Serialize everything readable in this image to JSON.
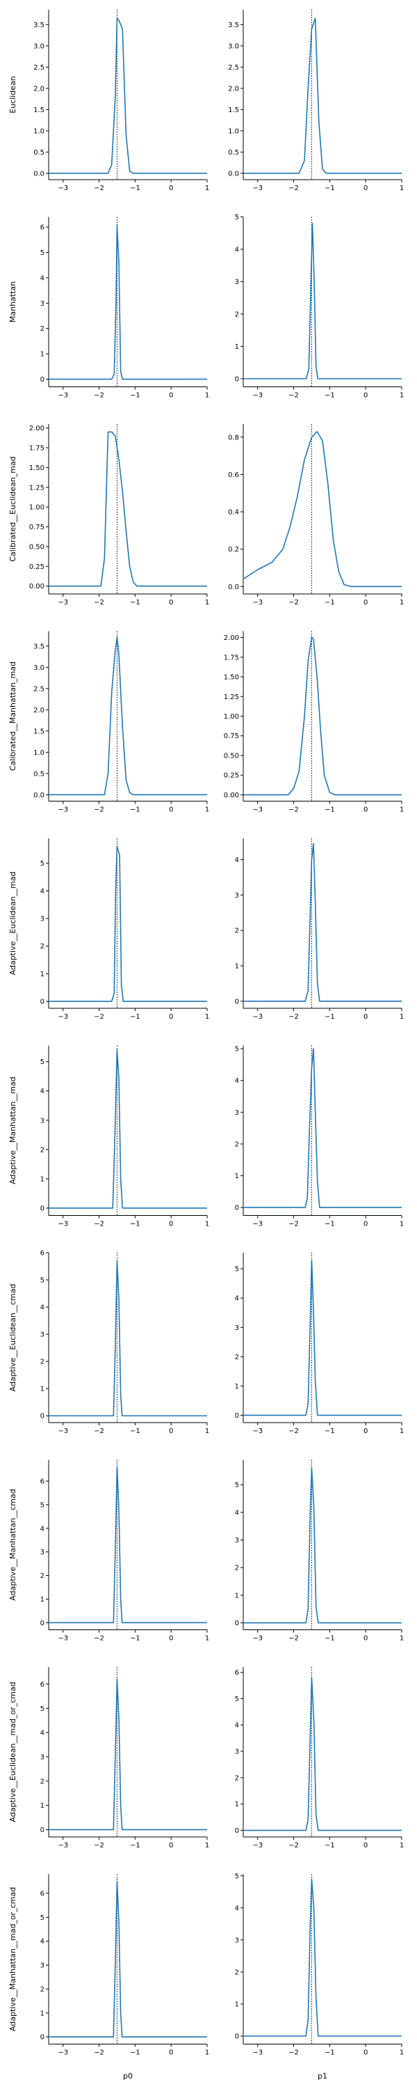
{
  "chart_data": {
    "type": "line",
    "x_ticks": [
      -3,
      -2,
      -1,
      0,
      1
    ],
    "xlim": [
      -3.4,
      1.0
    ],
    "reference_x": -1.5,
    "line_color": "#1f77b4",
    "columns": [
      "p0",
      "p1"
    ],
    "spines": "left-bottom",
    "grid": false,
    "legend": "none",
    "panels": [
      {
        "row_label": "Euclidean",
        "plots": [
          {
            "ylim": [
              -0.15,
              3.85
            ],
            "yticks": [
              "0.0",
              "0.5",
              "1.0",
              "1.5",
              "2.0",
              "2.5",
              "3.0",
              "3.5"
            ],
            "x": [
              -3.4,
              -1.75,
              -1.65,
              -1.55,
              -1.5,
              -1.45,
              -1.35,
              -1.25,
              -1.15,
              -1.05,
              1.0
            ],
            "y": [
              0,
              0,
              0.2,
              1.8,
              3.65,
              3.6,
              3.4,
              0.9,
              0.05,
              0,
              0
            ]
          },
          {
            "ylim": [
              -0.15,
              3.85
            ],
            "yticks": [
              "0.0",
              "0.5",
              "1.0",
              "1.5",
              "2.0",
              "2.5",
              "3.0",
              "3.5"
            ],
            "x": [
              -3.4,
              -1.85,
              -1.7,
              -1.6,
              -1.5,
              -1.4,
              -1.3,
              -1.2,
              -1.1,
              1.0
            ],
            "y": [
              0,
              0,
              0.3,
              2.0,
              3.4,
              3.65,
              1.2,
              0.1,
              0,
              0
            ]
          }
        ]
      },
      {
        "row_label": "Manhattan",
        "plots": [
          {
            "ylim": [
              -0.3,
              6.4
            ],
            "yticks": [
              "0",
              "1",
              "2",
              "3",
              "4",
              "5",
              "6"
            ],
            "x": [
              -3.4,
              -1.65,
              -1.58,
              -1.53,
              -1.5,
              -1.45,
              -1.4,
              -1.35,
              1.0
            ],
            "y": [
              0,
              0,
              0.2,
              3.0,
              6.05,
              4.6,
              0.3,
              0,
              0
            ]
          },
          {
            "ylim": [
              -0.25,
              5.0
            ],
            "yticks": [
              "0",
              "1",
              "2",
              "3",
              "4",
              "5"
            ],
            "x": [
              -3.4,
              -1.65,
              -1.58,
              -1.52,
              -1.48,
              -1.43,
              -1.38,
              -1.33,
              1.0
            ],
            "y": [
              0,
              0,
              0.3,
              3.0,
              4.8,
              3.0,
              0.4,
              0,
              0
            ]
          }
        ]
      },
      {
        "row_label": "Calibrated__Euclidean_mad",
        "plots": [
          {
            "ylim": [
              -0.1,
              2.05
            ],
            "yticks": [
              "0.00",
              "0.25",
              "0.50",
              "0.75",
              "1.00",
              "1.25",
              "1.50",
              "1.75",
              "2.00"
            ],
            "x": [
              -3.4,
              -1.95,
              -1.85,
              -1.75,
              -1.65,
              -1.55,
              -1.45,
              -1.35,
              -1.25,
              -1.15,
              -1.05,
              -0.95,
              1.0
            ],
            "y": [
              0,
              0,
              0.35,
              1.95,
              1.95,
              1.9,
              1.6,
              1.2,
              0.7,
              0.25,
              0.05,
              0,
              0
            ]
          },
          {
            "ylim": [
              -0.04,
              0.87
            ],
            "yticks": [
              "0.0",
              "0.2",
              "0.4",
              "0.6",
              "0.8"
            ],
            "x": [
              -3.4,
              -3.0,
              -2.6,
              -2.3,
              -2.1,
              -1.9,
              -1.7,
              -1.5,
              -1.35,
              -1.2,
              -1.05,
              -0.9,
              -0.75,
              -0.6,
              -0.4,
              1.0
            ],
            "y": [
              0.04,
              0.09,
              0.13,
              0.2,
              0.32,
              0.48,
              0.68,
              0.8,
              0.83,
              0.78,
              0.55,
              0.25,
              0.08,
              0.01,
              0,
              0
            ]
          }
        ]
      },
      {
        "row_label": "Calibrated__Manhattan_mad",
        "plots": [
          {
            "ylim": [
              -0.15,
              3.85
            ],
            "yticks": [
              "0.0",
              "0.5",
              "1.0",
              "1.5",
              "2.0",
              "2.5",
              "3.0",
              "3.5"
            ],
            "x": [
              -3.4,
              -1.85,
              -1.75,
              -1.65,
              -1.55,
              -1.5,
              -1.45,
              -1.35,
              -1.25,
              -1.15,
              -1.05,
              1.0
            ],
            "y": [
              0,
              0,
              0.5,
              2.4,
              3.4,
              3.7,
              3.3,
              1.6,
              0.35,
              0.05,
              0,
              0
            ]
          },
          {
            "ylim": [
              -0.08,
              2.08
            ],
            "yticks": [
              "0.00",
              "0.25",
              "0.50",
              "0.75",
              "1.00",
              "1.25",
              "1.50",
              "1.75",
              "2.00"
            ],
            "x": [
              -3.4,
              -2.15,
              -2.0,
              -1.85,
              -1.7,
              -1.6,
              -1.5,
              -1.45,
              -1.35,
              -1.25,
              -1.15,
              -1.0,
              -0.85,
              1.0
            ],
            "y": [
              0,
              0,
              0.08,
              0.3,
              1.0,
              1.7,
              2.0,
              1.98,
              1.5,
              0.8,
              0.25,
              0.03,
              0,
              0
            ]
          }
        ]
      },
      {
        "row_label": "Adaptive__Euclidean__mad",
        "plots": [
          {
            "ylim": [
              -0.25,
              5.9
            ],
            "yticks": [
              "0",
              "1",
              "2",
              "3",
              "4",
              "5"
            ],
            "x": [
              -3.4,
              -1.65,
              -1.58,
              -1.54,
              -1.5,
              -1.43,
              -1.38,
              -1.33,
              1.0
            ],
            "y": [
              0,
              0,
              0.3,
              4.0,
              5.6,
              5.3,
              0.6,
              0,
              0
            ]
          },
          {
            "ylim": [
              -0.2,
              4.6
            ],
            "yticks": [
              "0",
              "1",
              "2",
              "3",
              "4"
            ],
            "x": [
              -3.4,
              -1.68,
              -1.6,
              -1.54,
              -1.5,
              -1.45,
              -1.4,
              -1.34,
              -1.28,
              1.0
            ],
            "y": [
              0,
              0,
              0.3,
              2.5,
              4.0,
              4.45,
              2.8,
              0.5,
              0,
              0
            ]
          }
        ]
      },
      {
        "row_label": "Adaptive__Manhattan__mad",
        "plots": [
          {
            "ylim": [
              -0.25,
              5.55
            ],
            "yticks": [
              "0",
              "1",
              "2",
              "3",
              "4",
              "5"
            ],
            "x": [
              -3.4,
              -1.62,
              -1.56,
              -1.5,
              -1.45,
              -1.4,
              -1.35,
              1.0
            ],
            "y": [
              0,
              0,
              2.5,
              5.4,
              4.4,
              1.0,
              0,
              0
            ]
          },
          {
            "ylim": [
              -0.25,
              5.1
            ],
            "yticks": [
              "0",
              "1",
              "2",
              "3",
              "4",
              "5"
            ],
            "x": [
              -3.4,
              -1.68,
              -1.62,
              -1.56,
              -1.5,
              -1.45,
              -1.4,
              -1.34,
              -1.28,
              1.0
            ],
            "y": [
              0,
              0,
              0.3,
              2.5,
              4.4,
              5.0,
              3.0,
              0.8,
              0,
              0
            ]
          }
        ]
      },
      {
        "row_label": "Adaptive__Euclidean__cmad",
        "plots": [
          {
            "ylim": [
              -0.25,
              6.0
            ],
            "yticks": [
              "0",
              "1",
              "2",
              "3",
              "4",
              "5",
              "6"
            ],
            "x": [
              -3.4,
              -1.6,
              -1.55,
              -1.5,
              -1.45,
              -1.4,
              -1.36,
              1.0
            ],
            "y": [
              0,
              0,
              2.5,
              5.7,
              4.3,
              0.8,
              0,
              0
            ]
          },
          {
            "ylim": [
              -0.25,
              5.55
            ],
            "yticks": [
              "0",
              "1",
              "2",
              "3",
              "4",
              "5"
            ],
            "x": [
              -3.4,
              -1.66,
              -1.6,
              -1.54,
              -1.5,
              -1.45,
              -1.4,
              -1.34,
              1.0
            ],
            "y": [
              0,
              0,
              0.4,
              3.2,
              5.3,
              3.6,
              1.2,
              0,
              0
            ]
          }
        ]
      },
      {
        "row_label": "Adaptive__Manhattan__cmad",
        "plots": [
          {
            "ylim": [
              -0.3,
              6.9
            ],
            "yticks": [
              "0",
              "1",
              "2",
              "3",
              "4",
              "5",
              "6"
            ],
            "x": [
              -3.4,
              -1.6,
              -1.55,
              -1.5,
              -1.45,
              -1.4,
              -1.36,
              1.0
            ],
            "y": [
              0,
              0,
              3.0,
              6.6,
              4.8,
              1.0,
              0,
              0
            ]
          },
          {
            "ylim": [
              -0.25,
              5.9
            ],
            "yticks": [
              "0",
              "1",
              "2",
              "3",
              "4",
              "5"
            ],
            "x": [
              -3.4,
              -1.66,
              -1.6,
              -1.54,
              -1.5,
              -1.44,
              -1.38,
              -1.32,
              1.0
            ],
            "y": [
              0,
              0,
              0.5,
              4.0,
              5.6,
              4.2,
              0.6,
              0,
              0
            ]
          }
        ]
      },
      {
        "row_label": "Adaptive__Euclidean__mad_or_cmad",
        "plots": [
          {
            "ylim": [
              -0.3,
              6.7
            ],
            "yticks": [
              "0",
              "1",
              "2",
              "3",
              "4",
              "5",
              "6"
            ],
            "x": [
              -3.4,
              -1.6,
              -1.55,
              -1.5,
              -1.45,
              -1.4,
              -1.36,
              1.0
            ],
            "y": [
              0,
              0,
              3.0,
              6.2,
              4.6,
              1.0,
              0,
              0
            ]
          },
          {
            "ylim": [
              -0.25,
              6.2
            ],
            "yticks": [
              "0",
              "1",
              "2",
              "3",
              "4",
              "5",
              "6"
            ],
            "x": [
              -3.4,
              -1.66,
              -1.6,
              -1.54,
              -1.5,
              -1.44,
              -1.38,
              -1.32,
              1.0
            ],
            "y": [
              0,
              0,
              0.4,
              3.6,
              5.8,
              4.2,
              0.6,
              0,
              0
            ]
          }
        ]
      },
      {
        "row_label": "Adaptive__Manhattan__mad_or_cmad",
        "plots": [
          {
            "ylim": [
              -0.3,
              6.8
            ],
            "yticks": [
              "0",
              "1",
              "2",
              "3",
              "4",
              "5",
              "6"
            ],
            "x": [
              -3.4,
              -1.6,
              -1.55,
              -1.5,
              -1.45,
              -1.4,
              -1.36,
              1.0
            ],
            "y": [
              0,
              0,
              3.0,
              6.5,
              4.8,
              1.0,
              0,
              0
            ]
          },
          {
            "ylim": [
              -0.25,
              5.05
            ],
            "yticks": [
              "0",
              "1",
              "2",
              "3",
              "4",
              "5"
            ],
            "x": [
              -3.4,
              -1.66,
              -1.6,
              -1.54,
              -1.5,
              -1.44,
              -1.38,
              -1.32,
              1.0
            ],
            "y": [
              0,
              0,
              0.5,
              3.5,
              4.9,
              4.0,
              1.2,
              0,
              0
            ]
          }
        ]
      }
    ]
  }
}
